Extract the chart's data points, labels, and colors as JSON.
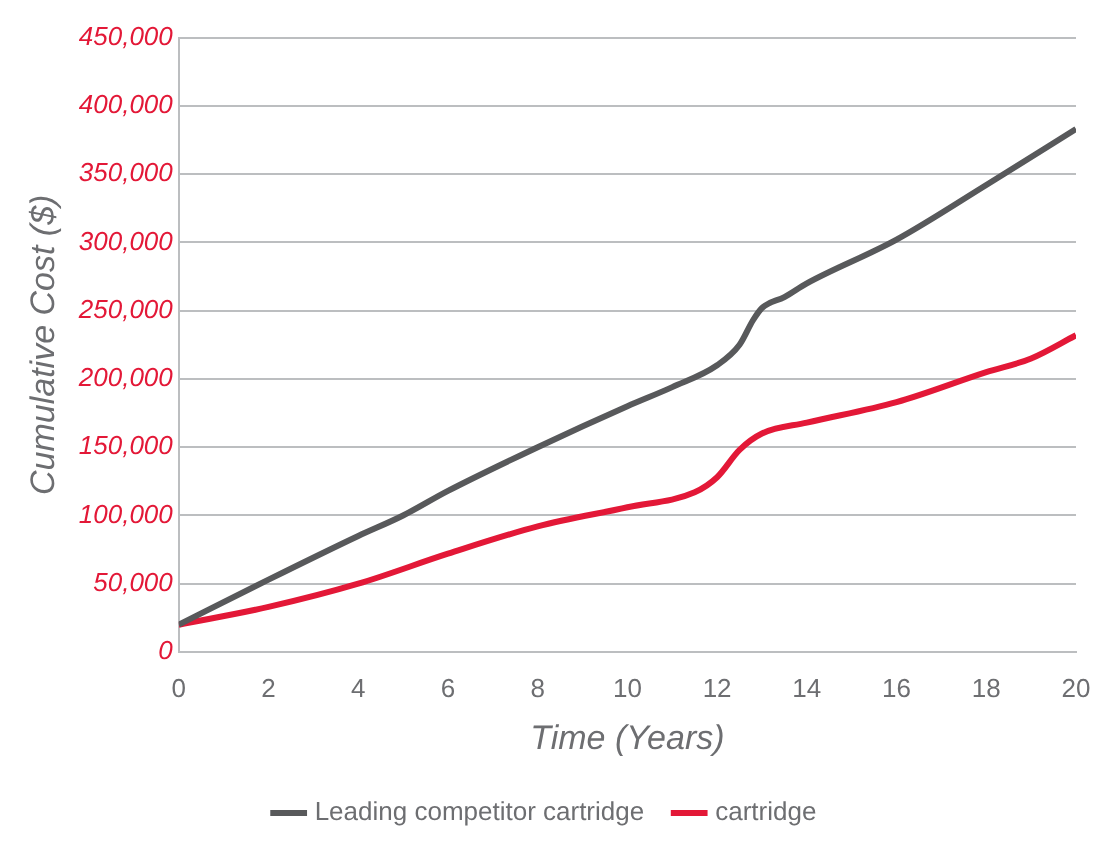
{
  "chart_data": {
    "type": "line",
    "xlabel": "Time (Years)",
    "ylabel": "Cumulative Cost ($)",
    "xlim": [
      0,
      20
    ],
    "xticks": [
      0,
      2,
      4,
      6,
      8,
      10,
      12,
      14,
      16,
      18,
      20
    ],
    "ylim": [
      0,
      450000
    ],
    "yticks": [
      0,
      {
        "value": 50000,
        "label": "50,000"
      },
      {
        "value": 100000,
        "label": "100,000"
      },
      {
        "value": 150000,
        "label": "150,000"
      },
      {
        "value": 200000,
        "label": "200,000"
      },
      {
        "value": 250000,
        "label": "250,000"
      },
      {
        "value": 300000,
        "label": "300,000"
      },
      {
        "value": 350000,
        "label": "350,000"
      },
      {
        "value": 400000,
        "label": "400,000"
      },
      {
        "value": 450000,
        "label": "450,000"
      }
    ],
    "grid": "y",
    "legend": "bottom",
    "marker": "none",
    "line_style": "solid",
    "series": [
      {
        "name": "Leading competitor cartridge",
        "color": "#58595b",
        "x": [
          0,
          2,
          4,
          5,
          6,
          8,
          10,
          11,
          12,
          12.5,
          12.8,
          13,
          13.5,
          14,
          16,
          18,
          20
        ],
        "values": [
          20000,
          53000,
          85000,
          100000,
          118000,
          150000,
          180000,
          194000,
          210000,
          225000,
          243000,
          252000,
          260000,
          270000,
          302000,
          342000,
          383000
        ]
      },
      {
        "name": "cartridge",
        "color": "#e31837",
        "x": [
          0,
          2,
          4,
          6,
          8,
          10,
          11.5,
          12,
          12.5,
          13,
          14,
          16,
          18,
          19,
          20
        ],
        "values": [
          20000,
          33000,
          50000,
          72000,
          92000,
          106000,
          117000,
          128000,
          148000,
          160000,
          168000,
          183000,
          205000,
          215000,
          232000
        ]
      }
    ]
  }
}
